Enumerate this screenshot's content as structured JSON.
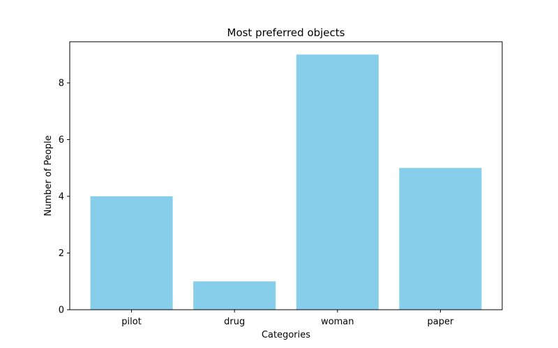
{
  "chart_data": {
    "type": "bar",
    "title": "Most preferred objects",
    "xlabel": "Categories",
    "ylabel": "Number of People",
    "categories": [
      "pilot",
      "drug",
      "woman",
      "paper"
    ],
    "values": [
      4,
      1,
      9,
      5
    ],
    "ylim": [
      0,
      9.45
    ],
    "yticks": [
      0,
      2,
      4,
      6,
      8
    ],
    "grid": false,
    "bar_color": "#87CEEB"
  }
}
